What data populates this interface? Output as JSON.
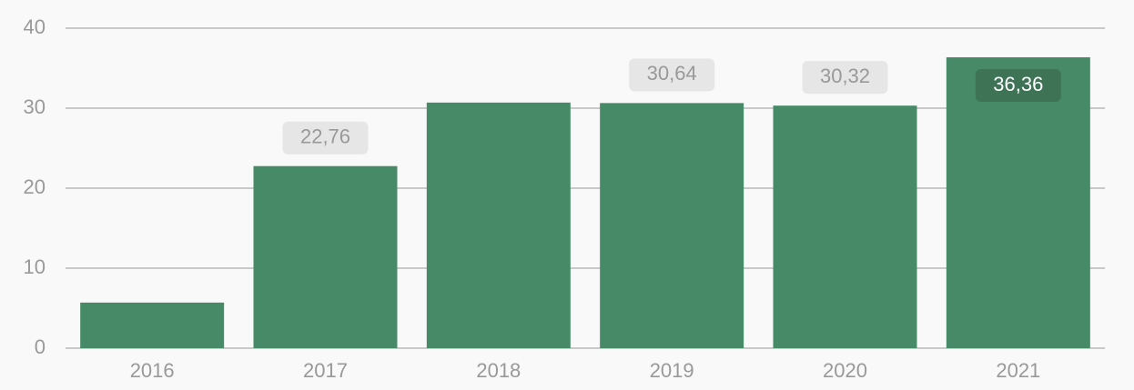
{
  "chart_data": {
    "type": "bar",
    "categories": [
      "2016",
      "2017",
      "2018",
      "2019",
      "2020",
      "2021"
    ],
    "values": [
      5.7,
      22.76,
      30.7,
      30.64,
      30.32,
      36.36
    ],
    "value_labels": [
      null,
      "22,76",
      null,
      "30,64",
      "30,32",
      "36,36"
    ],
    "color": "#478a67",
    "ylim": [
      0,
      40
    ],
    "yticks": [
      0,
      10,
      20,
      30,
      40
    ],
    "grid": true
  }
}
